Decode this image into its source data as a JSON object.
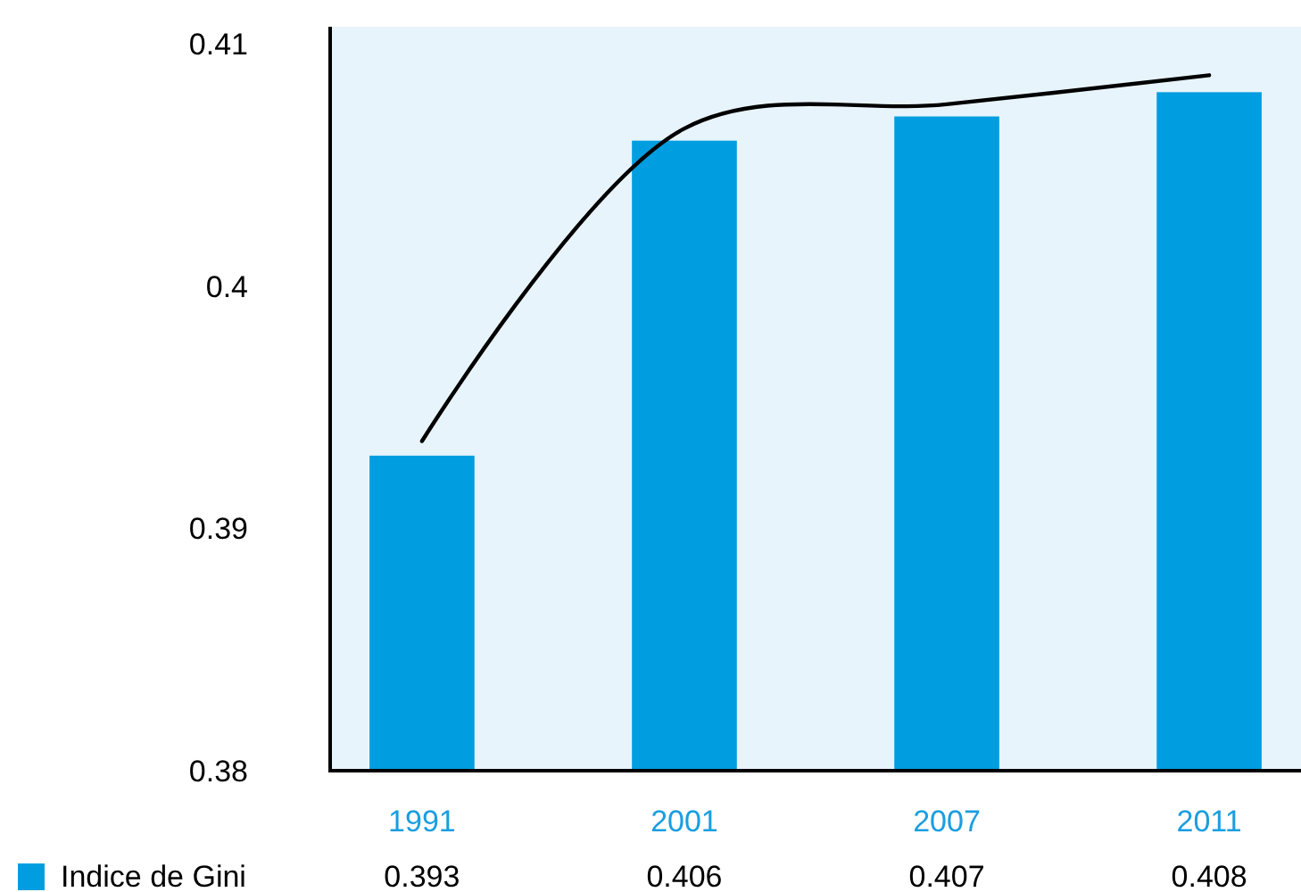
{
  "chart_data": {
    "type": "bar",
    "categories": [
      "1991",
      "2001",
      "2007",
      "2011"
    ],
    "series": [
      {
        "name": "Indice de Gini",
        "color": "#009ee0",
        "values": [
          0.393,
          0.406,
          0.407,
          0.408
        ],
        "value_labels": [
          "0.393",
          "0.406",
          "0.407",
          "0.408"
        ]
      },
      {
        "type": "line",
        "color": "#000000",
        "values": [
          0.3936,
          0.4065,
          0.4075,
          0.4087
        ]
      }
    ],
    "ylim": [
      0.38,
      0.4107
    ],
    "yticks": [
      0.38,
      0.39,
      {
        "value": 0.4,
        "label": "0.4"
      },
      0.41
    ],
    "grid": false,
    "legend": "bottom"
  }
}
